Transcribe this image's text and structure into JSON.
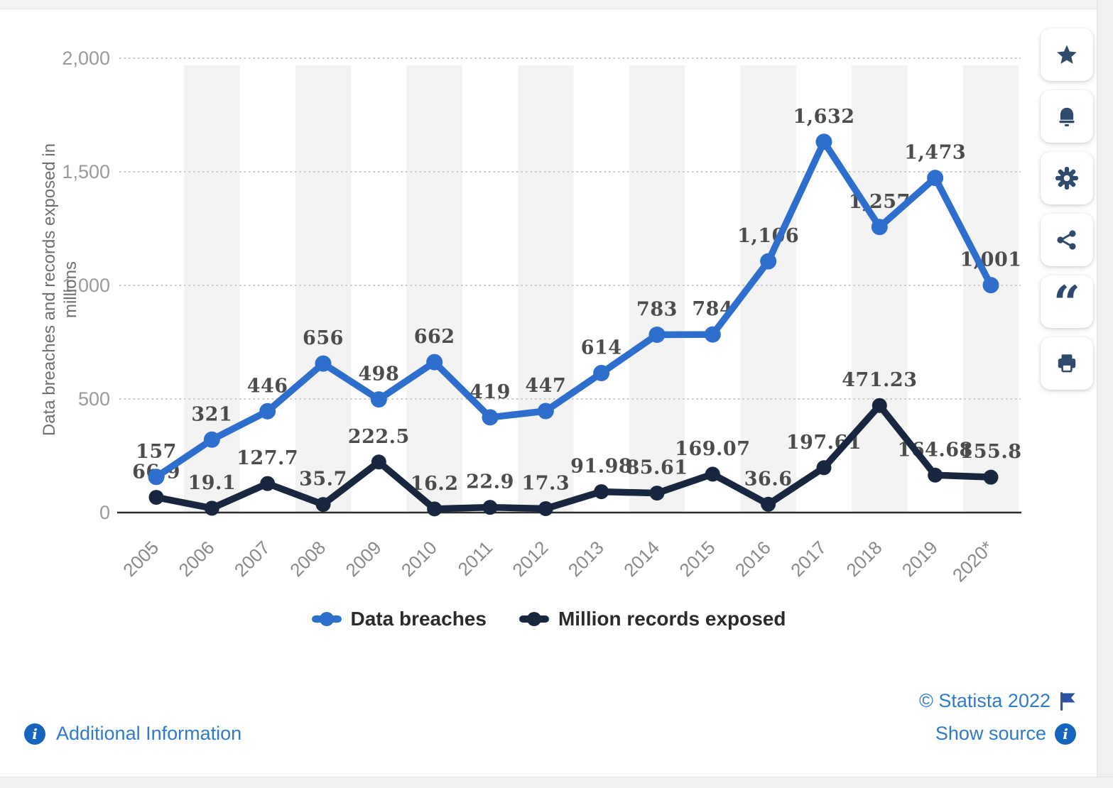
{
  "toolbar": {
    "buttons": [
      {
        "label": "favorite",
        "icon": "star-icon"
      },
      {
        "label": "notifications",
        "icon": "bell-icon"
      },
      {
        "label": "settings",
        "icon": "gear-icon"
      },
      {
        "label": "share",
        "icon": "share-icon"
      },
      {
        "label": "cite",
        "icon": "quote-icon"
      },
      {
        "label": "print",
        "icon": "print-icon"
      }
    ],
    "quote_glyph": "“"
  },
  "footer": {
    "additional_information": "Additional Information",
    "copyright": "© Statista 2022",
    "show_source": "Show source"
  },
  "colors": {
    "stripe": "#f3f3f3",
    "grid": "#c9c9c9",
    "axis": "#2d2d2d",
    "tick_text": "#9a9a9a",
    "data_label": "#4c4c4c",
    "link_blue": "#2e7cc9",
    "icon_navy": "#2f4a6b",
    "info_icon_blue": "#1565bf",
    "flag_blue": "#2d529f"
  },
  "chart_data": {
    "type": "line",
    "title": "",
    "xlabel": "",
    "ylabel": "Data breaches and records exposed in millions",
    "categories": [
      "2005",
      "2006",
      "2007",
      "2008",
      "2009",
      "2010",
      "2011",
      "2012",
      "2013",
      "2014",
      "2015",
      "2016",
      "2017",
      "2018",
      "2019",
      "2020*"
    ],
    "ylim": [
      0,
      2000
    ],
    "yticks": [
      0,
      500,
      1000,
      1500,
      2000
    ],
    "ytick_labels": [
      "0",
      "500",
      "1,000",
      "1,500",
      "2,000"
    ],
    "grid": "dotted-horizontal",
    "legend_position": "bottom",
    "series": [
      {
        "name": "Data breaches",
        "color": "#2e6fce",
        "values": [
          157,
          321,
          446,
          656,
          498,
          662,
          419,
          447,
          614,
          783,
          784,
          1106,
          1632,
          1257,
          1473,
          1001
        ],
        "labels": [
          "157",
          "321",
          "446",
          "656",
          "498",
          "662",
          "419",
          "447",
          "614",
          "783",
          "784",
          "1,106",
          "1,632",
          "1,257",
          "1,473",
          "1,001"
        ]
      },
      {
        "name": "Million records exposed",
        "color": "#18273f",
        "values": [
          66.9,
          19.1,
          127.7,
          35.7,
          222.5,
          16.2,
          22.9,
          17.3,
          91.98,
          85.61,
          169.07,
          36.6,
          197.61,
          471.23,
          164.68,
          155.8
        ],
        "labels": [
          "66.9",
          "19.1",
          "127.7",
          "35.7",
          "222.5",
          "16.2",
          "22.9",
          "17.3",
          "91.98",
          "85.61",
          "169.07",
          "36.6",
          "197.61",
          "471.23",
          "164.68",
          "155.8"
        ]
      }
    ]
  }
}
